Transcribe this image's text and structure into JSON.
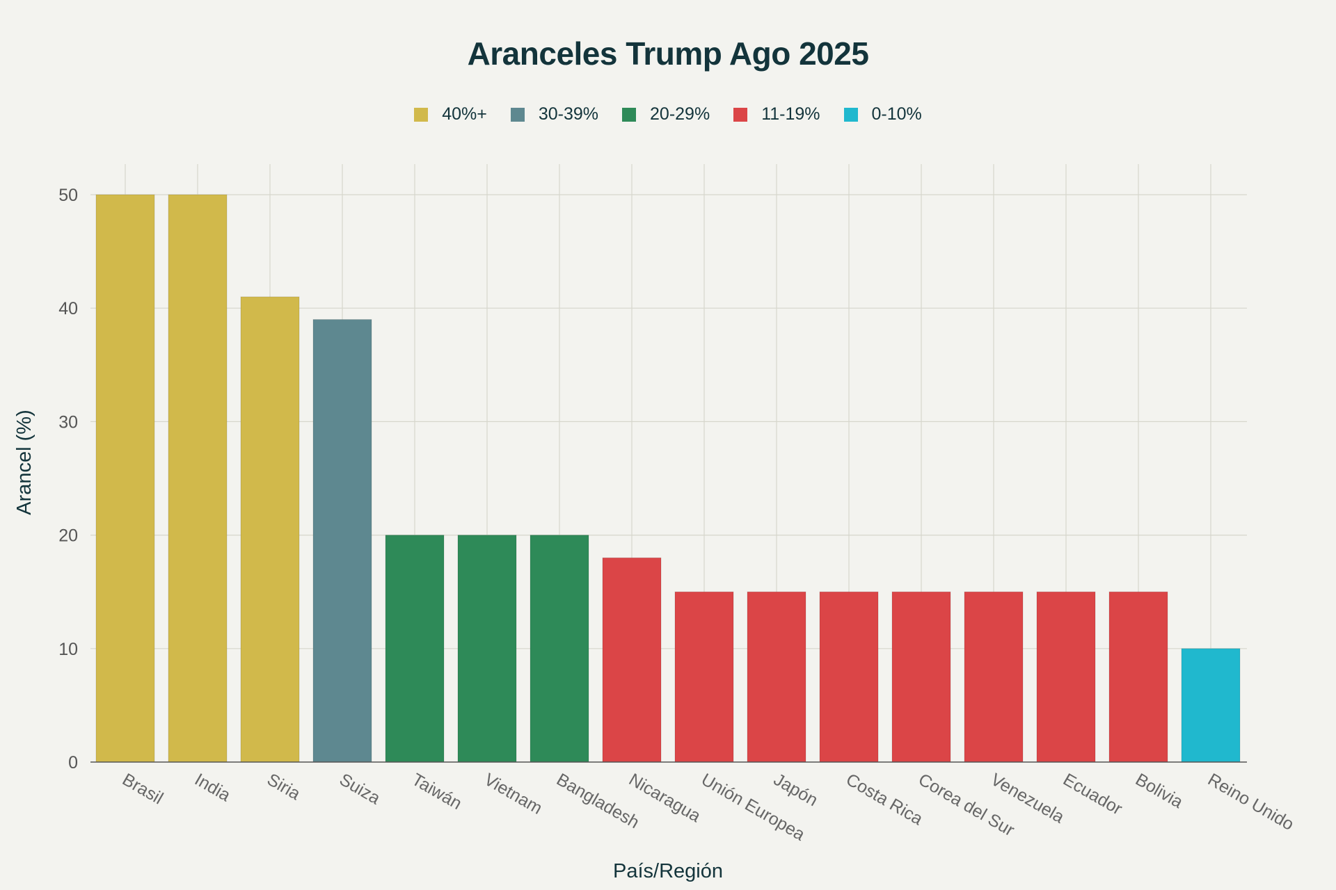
{
  "chart_data": {
    "type": "bar",
    "title": "Aranceles Trump Ago 2025",
    "xlabel": "País/Región",
    "ylabel": "Arancel (%)",
    "ylim": [
      0,
      52
    ],
    "yticks": [
      0,
      10,
      20,
      30,
      40,
      50
    ],
    "grid": true,
    "legend_position": "top-center",
    "categories": [
      "Brasil",
      "India",
      "Siria",
      "Suiza",
      "Taiwán",
      "Vietnam",
      "Bangladesh",
      "Nicaragua",
      "Unión Europea",
      "Japón",
      "Costa Rica",
      "Corea del Sur",
      "Venezuela",
      "Ecuador",
      "Bolivia",
      "Reino Unido"
    ],
    "values": [
      50,
      50,
      41,
      39,
      20,
      20,
      20,
      18,
      15,
      15,
      15,
      15,
      15,
      15,
      15,
      10
    ],
    "groups": [
      "40%+",
      "40%+",
      "40%+",
      "30-39%",
      "20-29%",
      "20-29%",
      "20-29%",
      "11-19%",
      "11-19%",
      "11-19%",
      "11-19%",
      "11-19%",
      "11-19%",
      "11-19%",
      "11-19%",
      "0-10%"
    ],
    "legend": [
      {
        "label": "40%+",
        "color": "#d1b94b"
      },
      {
        "label": "30-39%",
        "color": "#5e8890"
      },
      {
        "label": "20-29%",
        "color": "#2e8a58"
      },
      {
        "label": "11-19%",
        "color": "#db4547"
      },
      {
        "label": "0-10%",
        "color": "#20b8ce"
      }
    ]
  }
}
